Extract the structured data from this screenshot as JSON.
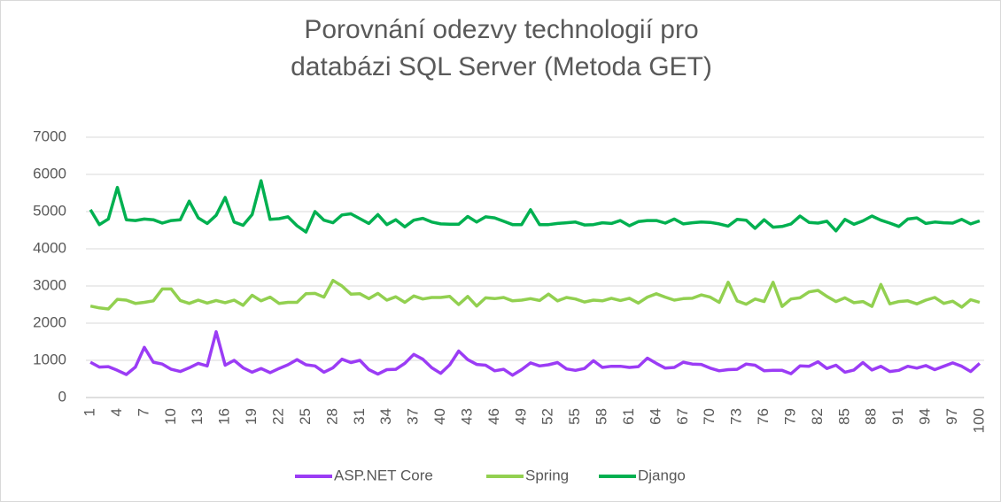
{
  "chart_data": {
    "type": "line",
    "title": "Porovnání odezvy technologií pro databázi SQL Server (Metoda GET)",
    "x": [
      1,
      2,
      3,
      4,
      5,
      6,
      7,
      8,
      9,
      10,
      11,
      12,
      13,
      14,
      15,
      16,
      17,
      18,
      19,
      20,
      21,
      22,
      23,
      24,
      25,
      26,
      27,
      28,
      29,
      30,
      31,
      32,
      33,
      34,
      35,
      36,
      37,
      38,
      39,
      40,
      41,
      42,
      43,
      44,
      45,
      46,
      47,
      48,
      49,
      50,
      51,
      52,
      53,
      54,
      55,
      56,
      57,
      58,
      59,
      60,
      61,
      62,
      63,
      64,
      65,
      66,
      67,
      68,
      69,
      70,
      71,
      72,
      73,
      74,
      75,
      76,
      77,
      78,
      79,
      80,
      81,
      82,
      83,
      84,
      85,
      86,
      87,
      88,
      89,
      90,
      91,
      92,
      93,
      94,
      95,
      96,
      97,
      98,
      99,
      100
    ],
    "xlim": [
      0.5,
      100.5
    ],
    "xticks": [
      1,
      4,
      7,
      10,
      13,
      16,
      19,
      22,
      25,
      28,
      31,
      34,
      37,
      40,
      43,
      46,
      49,
      52,
      55,
      58,
      61,
      64,
      67,
      70,
      73,
      76,
      79,
      82,
      85,
      88,
      91,
      94,
      97,
      100
    ],
    "ylim": [
      0,
      7000
    ],
    "yticks": [
      0,
      1000,
      2000,
      3000,
      4000,
      5000,
      6000,
      7000
    ],
    "grid": true,
    "legend": "bottom",
    "series": [
      {
        "name": "ASP.NET Core",
        "color": "#9b3cf5",
        "values": [
          950,
          820,
          830,
          730,
          620,
          820,
          1350,
          950,
          900,
          760,
          700,
          800,
          920,
          850,
          1770,
          870,
          1000,
          800,
          680,
          780,
          670,
          780,
          880,
          1020,
          880,
          850,
          680,
          800,
          1030,
          940,
          1000,
          750,
          630,
          750,
          760,
          920,
          1160,
          1030,
          800,
          650,
          880,
          1250,
          1020,
          890,
          870,
          720,
          760,
          600,
          750,
          930,
          850,
          880,
          940,
          770,
          730,
          780,
          990,
          810,
          840,
          840,
          810,
          830,
          1060,
          920,
          790,
          810,
          950,
          900,
          890,
          790,
          720,
          750,
          760,
          900,
          870,
          720,
          730,
          730,
          640,
          850,
          840,
          960,
          780,
          870,
          680,
          740,
          940,
          740,
          840,
          700,
          730,
          840,
          790,
          860,
          750,
          840,
          930,
          840,
          700,
          920
        ]
      },
      {
        "name": "Spring",
        "color": "#92d050",
        "values": [
          2460,
          2410,
          2380,
          2640,
          2620,
          2530,
          2560,
          2600,
          2920,
          2920,
          2610,
          2530,
          2620,
          2540,
          2610,
          2550,
          2620,
          2480,
          2750,
          2600,
          2700,
          2530,
          2560,
          2560,
          2790,
          2800,
          2700,
          3150,
          3000,
          2780,
          2790,
          2660,
          2800,
          2620,
          2710,
          2560,
          2730,
          2650,
          2690,
          2690,
          2720,
          2500,
          2720,
          2460,
          2680,
          2660,
          2690,
          2600,
          2620,
          2660,
          2610,
          2780,
          2600,
          2690,
          2650,
          2570,
          2620,
          2600,
          2670,
          2610,
          2670,
          2540,
          2700,
          2790,
          2700,
          2620,
          2660,
          2670,
          2760,
          2700,
          2560,
          3100,
          2600,
          2510,
          2650,
          2580,
          3100,
          2450,
          2650,
          2680,
          2840,
          2880,
          2720,
          2580,
          2680,
          2550,
          2580,
          2450,
          3040,
          2520,
          2580,
          2600,
          2520,
          2620,
          2690,
          2530,
          2590,
          2430,
          2630,
          2560
        ]
      },
      {
        "name": "Django",
        "color": "#00b050",
        "values": [
          5050,
          4650,
          4800,
          5650,
          4780,
          4760,
          4800,
          4780,
          4690,
          4760,
          4780,
          5280,
          4830,
          4680,
          4900,
          5380,
          4720,
          4630,
          4920,
          5830,
          4790,
          4810,
          4860,
          4620,
          4450,
          5000,
          4770,
          4700,
          4910,
          4940,
          4810,
          4680,
          4920,
          4650,
          4780,
          4590,
          4770,
          4820,
          4720,
          4670,
          4660,
          4660,
          4870,
          4720,
          4860,
          4830,
          4740,
          4650,
          4650,
          5050,
          4650,
          4650,
          4680,
          4700,
          4720,
          4640,
          4650,
          4700,
          4680,
          4760,
          4620,
          4730,
          4760,
          4760,
          4690,
          4800,
          4670,
          4700,
          4720,
          4710,
          4670,
          4610,
          4790,
          4770,
          4550,
          4780,
          4580,
          4600,
          4670,
          4880,
          4710,
          4690,
          4740,
          4480,
          4790,
          4660,
          4750,
          4880,
          4770,
          4690,
          4600,
          4800,
          4830,
          4680,
          4720,
          4700,
          4690,
          4790,
          4670,
          4750
        ]
      }
    ]
  }
}
